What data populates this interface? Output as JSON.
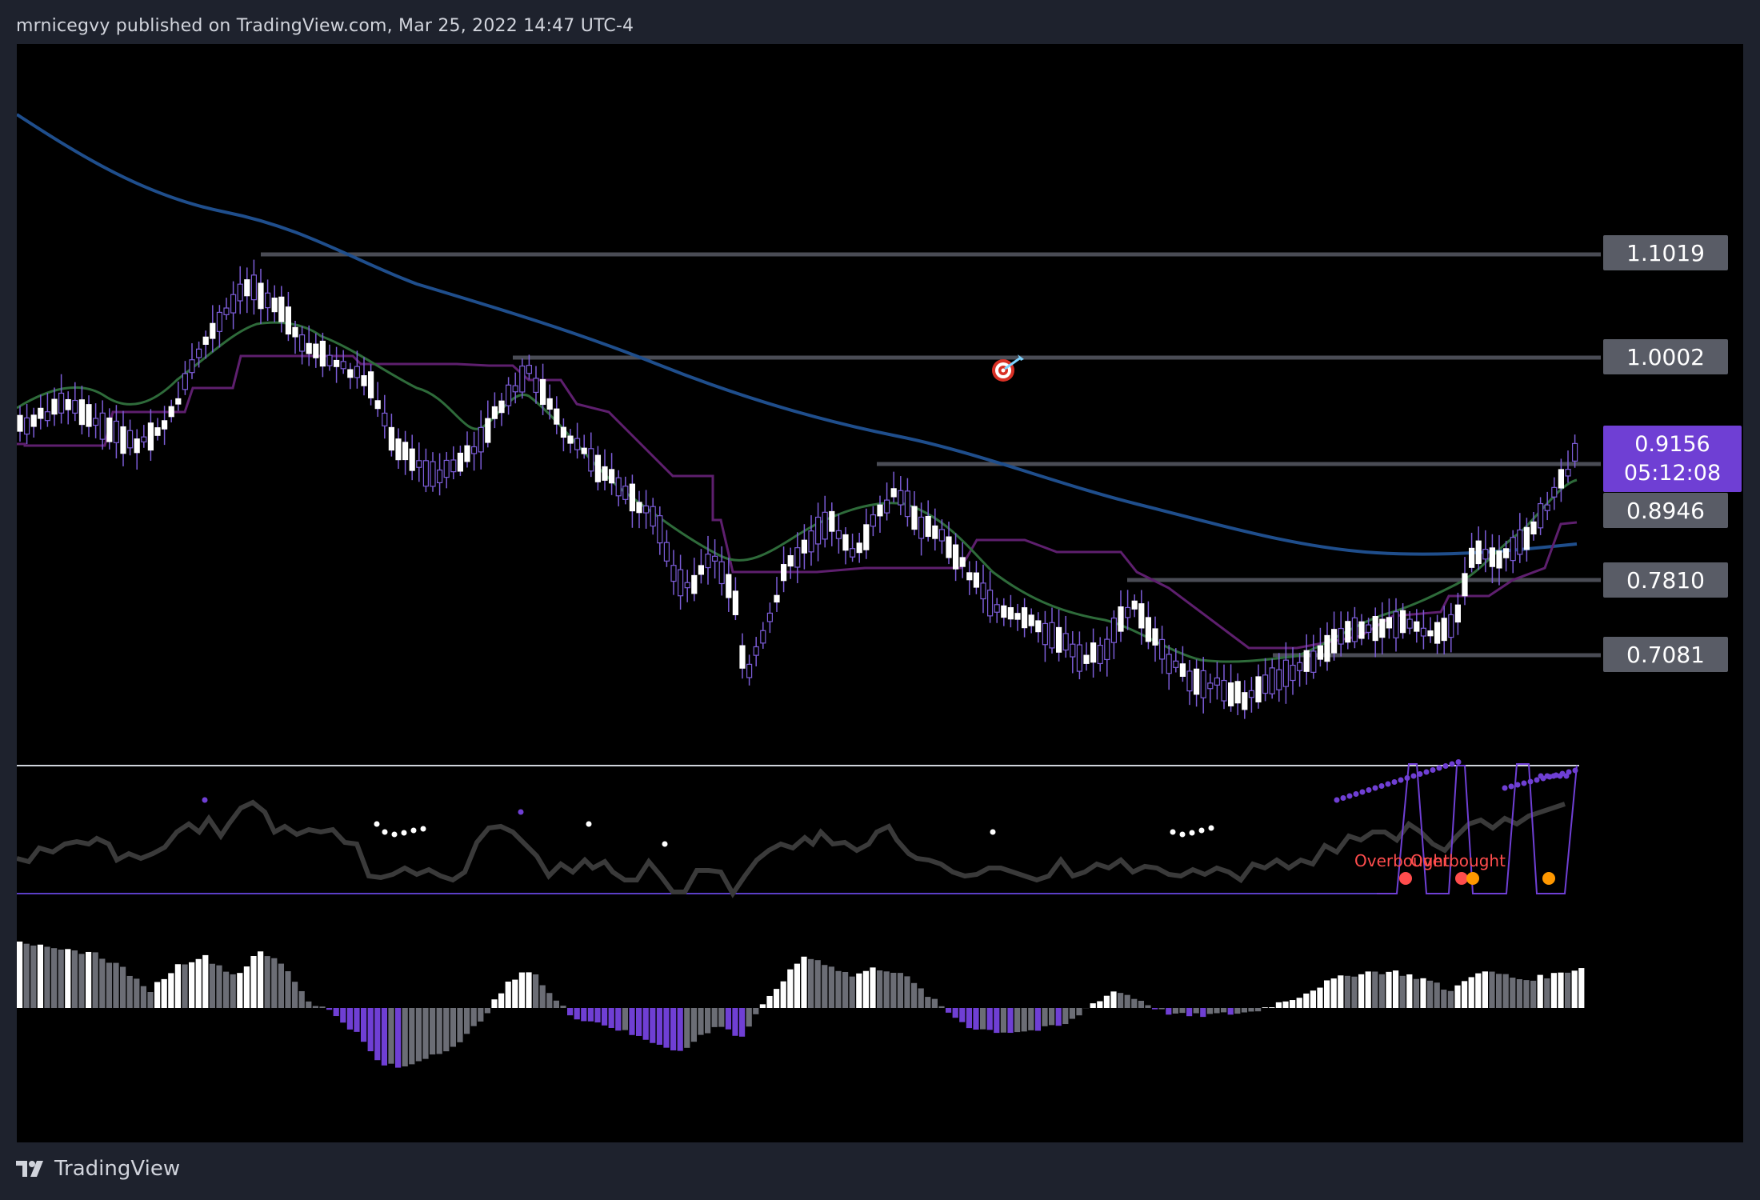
{
  "header": {
    "publish_text": "mrnicegvy published on TradingView.com, Mar 25, 2022 14:47 UTC-4"
  },
  "price_levels": {
    "l1": "1.1019",
    "l2": "1.0002",
    "l3": "0.8946",
    "l4": "0.7810",
    "l5": "0.7081"
  },
  "current_price": {
    "price": "0.9156",
    "countdown": "05:12:08"
  },
  "oscillator": {
    "signal_label_1": "Overbought",
    "signal_label_2": "Overbought"
  },
  "footer": {
    "brand": "TradingView"
  },
  "colors": {
    "background": "#000000",
    "frame": "#1e222d",
    "candle_up": "#ffffff",
    "candle_wick": "#7b5cd6",
    "ma_long": "#1f4e8c",
    "ma_short": "#2e6b3a",
    "channel": "#5e1f6e",
    "level_line": "#4a4c55",
    "accent": "#6f3fd4",
    "overbought_red": "#ff4d4d",
    "overbought_orange": "#ff9800"
  },
  "icons": {
    "target": "target-dart-icon",
    "logo": "tradingview-logo-icon"
  }
}
